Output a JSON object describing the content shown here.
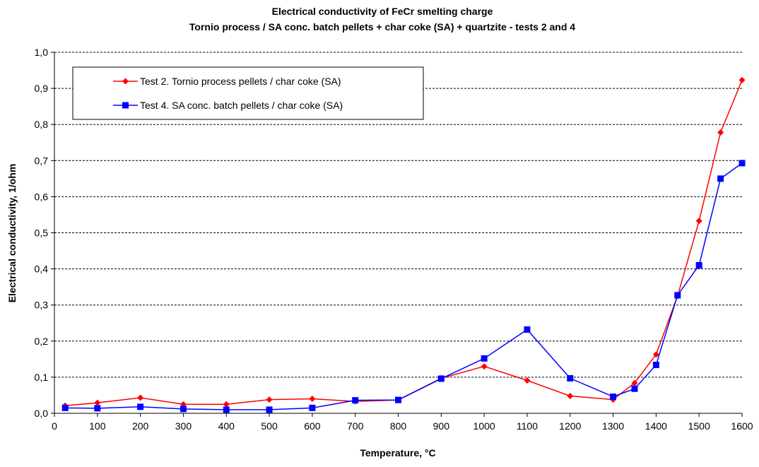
{
  "chart_data": {
    "type": "line",
    "title": "Electrical conductivity of FeCr smelting charge",
    "subtitle": "Tornio process / SA conc. batch pellets + char coke (SA) + quartzite - tests 2 and 4",
    "xlabel": "Temperature, °C",
    "ylabel": "Electrical conductivity, 1/ohm",
    "xlim": [
      0,
      1600
    ],
    "ylim": [
      0,
      1.0
    ],
    "x_ticks": [
      "0",
      "100",
      "200",
      "300",
      "400",
      "500",
      "600",
      "700",
      "800",
      "900",
      "1000",
      "1100",
      "1200",
      "1300",
      "1400",
      "1500",
      "1600"
    ],
    "y_ticks": [
      "0,0",
      "0,1",
      "0,2",
      "0,3",
      "0,4",
      "0,5",
      "0,6",
      "0,7",
      "0,8",
      "0,9",
      "1,0"
    ],
    "grid": "horizontal dashed",
    "legend_position": "top-left",
    "series": [
      {
        "name": "Test 2. Tornio process pellets / char coke (SA)",
        "color": "#ff0000",
        "marker": "diamond",
        "x": [
          25,
          100,
          200,
          300,
          400,
          500,
          600,
          700,
          800,
          900,
          1000,
          1100,
          1200,
          1300,
          1350,
          1400,
          1450,
          1500,
          1550,
          1600
        ],
        "y": [
          0.021,
          0.029,
          0.043,
          0.025,
          0.025,
          0.038,
          0.04,
          0.033,
          0.037,
          0.097,
          0.13,
          0.091,
          0.048,
          0.038,
          0.084,
          0.163,
          0.325,
          0.533,
          0.778,
          0.923
        ]
      },
      {
        "name": "Test 4. SA conc. batch pellets / char coke (SA)",
        "color": "#0000ff",
        "marker": "square",
        "x": [
          25,
          100,
          200,
          300,
          400,
          500,
          600,
          700,
          800,
          900,
          1000,
          1100,
          1200,
          1300,
          1350,
          1400,
          1450,
          1500,
          1550,
          1600
        ],
        "y": [
          0.015,
          0.014,
          0.018,
          0.012,
          0.01,
          0.01,
          0.015,
          0.036,
          0.037,
          0.096,
          0.152,
          0.232,
          0.097,
          0.046,
          0.068,
          0.134,
          0.327,
          0.41,
          0.65,
          0.693
        ]
      }
    ]
  }
}
